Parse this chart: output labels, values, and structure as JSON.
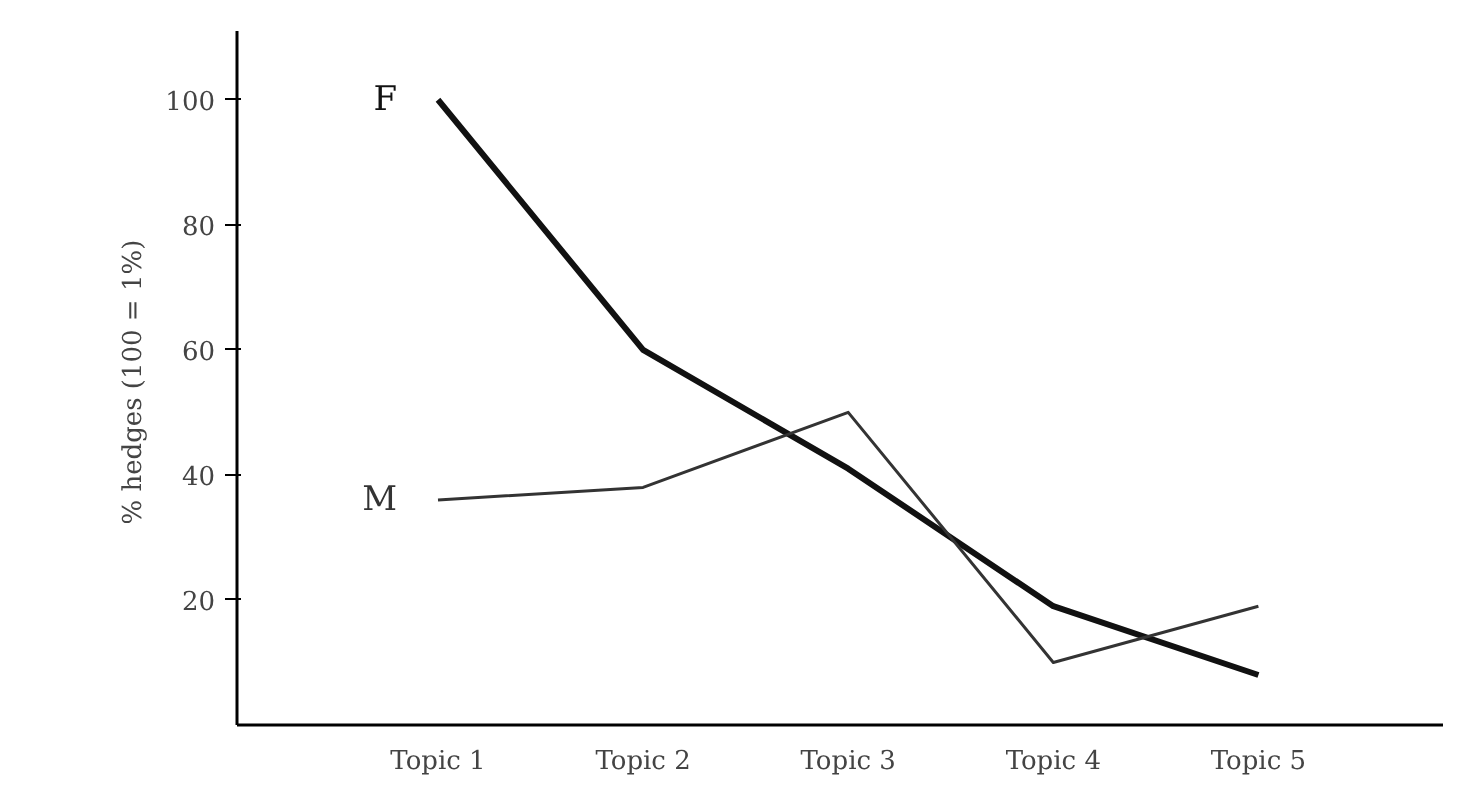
{
  "chart_data": {
    "type": "line",
    "ylabel": "% hedges  (100 = 1%)",
    "categories": [
      "Topic 1",
      "Topic 2",
      "Topic 3",
      "Topic 4",
      "Topic 5"
    ],
    "series": [
      {
        "name": "F",
        "color": "#111111",
        "values": [
          100,
          60,
          41,
          19,
          8
        ]
      },
      {
        "name": "M",
        "color": "#333333",
        "values": [
          36,
          38,
          50,
          10,
          19
        ]
      }
    ],
    "ylim": [
      0,
      111
    ],
    "yticks": [
      20,
      40,
      60,
      80,
      100
    ],
    "grid": false,
    "legend": false,
    "marker": "none",
    "line_style": "solid"
  }
}
